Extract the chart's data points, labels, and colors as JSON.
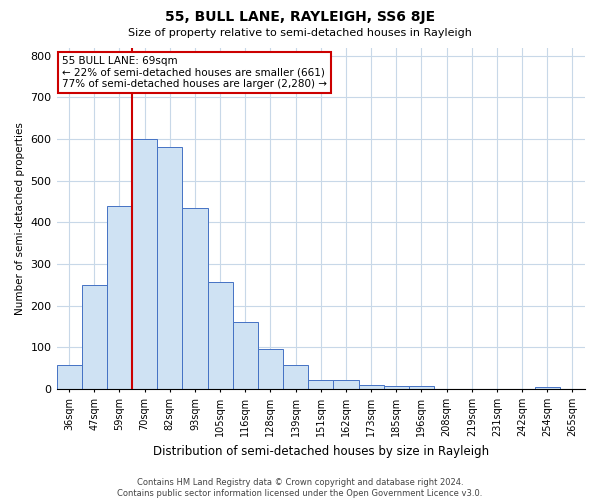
{
  "title": "55, BULL LANE, RAYLEIGH, SS6 8JE",
  "subtitle": "Size of property relative to semi-detached houses in Rayleigh",
  "xlabel": "Distribution of semi-detached houses by size in Rayleigh",
  "ylabel": "Number of semi-detached properties",
  "bin_labels": [
    "36sqm",
    "47sqm",
    "59sqm",
    "70sqm",
    "82sqm",
    "93sqm",
    "105sqm",
    "116sqm",
    "128sqm",
    "139sqm",
    "151sqm",
    "162sqm",
    "173sqm",
    "185sqm",
    "196sqm",
    "208sqm",
    "219sqm",
    "231sqm",
    "242sqm",
    "254sqm",
    "265sqm"
  ],
  "bar_heights": [
    57,
    250,
    440,
    600,
    580,
    435,
    258,
    160,
    97,
    57,
    22,
    22,
    10,
    8,
    8,
    0,
    0,
    0,
    0,
    5,
    0
  ],
  "bar_color": "#cfe2f3",
  "bar_edge_color": "#4472c4",
  "property_line_idx": 3,
  "property_line_color": "#cc0000",
  "annotation_title": "55 BULL LANE: 69sqm",
  "annotation_line1": "← 22% of semi-detached houses are smaller (661)",
  "annotation_line2": "77% of semi-detached houses are larger (2,280) →",
  "annotation_box_color": "#ffffff",
  "annotation_box_edge": "#cc0000",
  "ylim": [
    0,
    820
  ],
  "yticks": [
    0,
    100,
    200,
    300,
    400,
    500,
    600,
    700,
    800
  ],
  "footer_line1": "Contains HM Land Registry data © Crown copyright and database right 2024.",
  "footer_line2": "Contains public sector information licensed under the Open Government Licence v3.0.",
  "background_color": "#ffffff",
  "grid_color": "#c8d8e8"
}
